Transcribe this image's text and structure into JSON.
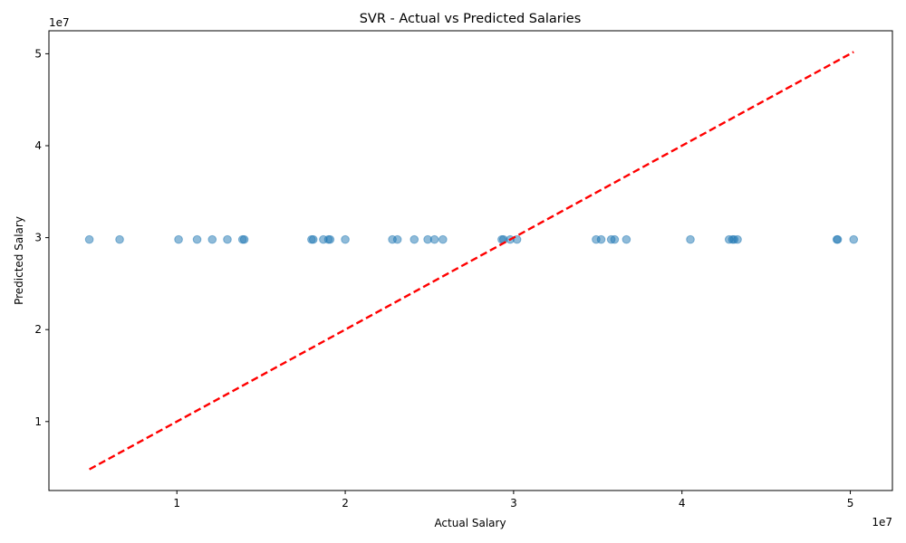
{
  "chart_data": {
    "type": "scatter",
    "title": "SVR - Actual vs Predicted Salaries",
    "xlabel": "Actual Salary",
    "ylabel": "Predicted Salary",
    "x_offset_label": "1e7",
    "y_offset_label": "1e7",
    "xlim": [
      2400000.0,
      52500000.0
    ],
    "ylim": [
      2500000.0,
      52500000.0
    ],
    "x_ticks": [
      10000000.0,
      20000000.0,
      30000000.0,
      40000000.0,
      50000000.0
    ],
    "x_tick_labels": [
      "1",
      "2",
      "3",
      "4",
      "5"
    ],
    "y_ticks": [
      10000000.0,
      20000000.0,
      30000000.0,
      40000000.0,
      50000000.0
    ],
    "y_tick_labels": [
      "1",
      "2",
      "3",
      "4",
      "5"
    ],
    "grid": false,
    "legend": "none",
    "point_color": "#1f77b4",
    "line_color": "#ff0000",
    "reference_line": {
      "x": [
        4800000.0,
        50200000.0
      ],
      "y": [
        4800000.0,
        50200000.0
      ],
      "style": "dashed"
    },
    "series": [
      {
        "x": [
          4800000.0,
          6600000.0,
          10100000.0,
          11200000.0,
          12100000.0,
          13000000.0,
          13900000.0,
          14000000.0,
          18000000.0,
          18100000.0,
          18700000.0,
          19000000.0,
          19100000.0,
          20000000.0,
          22800000.0,
          23100000.0,
          24100000.0,
          24900000.0,
          25300000.0,
          25800000.0,
          29300000.0,
          29400000.0,
          29800000.0,
          30200000.0,
          34900000.0,
          35200000.0,
          35800000.0,
          36000000.0,
          36700000.0,
          40500000.0,
          42800000.0,
          43000000.0,
          43100000.0,
          43300000.0,
          49200000.0,
          49250000.0,
          50200000.0
        ],
        "y": [
          29800000.0,
          29800000.0,
          29800000.0,
          29800000.0,
          29800000.0,
          29800000.0,
          29800000.0,
          29800000.0,
          29800000.0,
          29800000.0,
          29800000.0,
          29800000.0,
          29800000.0,
          29800000.0,
          29800000.0,
          29800000.0,
          29800000.0,
          29800000.0,
          29800000.0,
          29800000.0,
          29800000.0,
          29800000.0,
          29800000.0,
          29800000.0,
          29800000.0,
          29800000.0,
          29800000.0,
          29800000.0,
          29800000.0,
          29800000.0,
          29800000.0,
          29800000.0,
          29800000.0,
          29800000.0,
          29800000.0,
          29800000.0,
          29800000.0
        ]
      }
    ]
  }
}
